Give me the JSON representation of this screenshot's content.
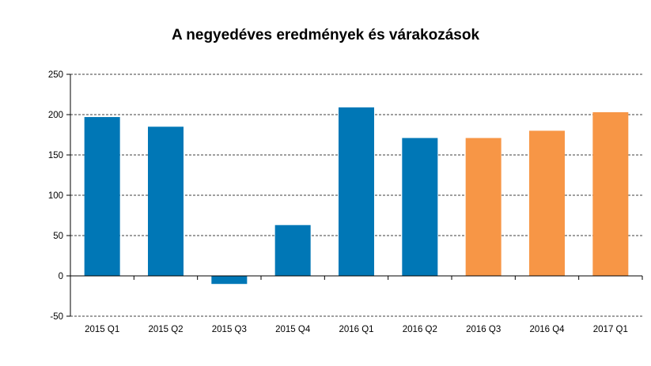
{
  "chart_data": {
    "type": "bar",
    "title": "A negyedéves eredmények és várakozások",
    "categories": [
      "2015 Q1",
      "2015 Q2",
      "2015 Q3",
      "2015 Q4",
      "2016 Q1",
      "2016 Q2",
      "2016 Q3",
      "2016 Q4",
      "2017 Q1"
    ],
    "values": [
      197,
      185,
      -10,
      63,
      209,
      171,
      171,
      180,
      203
    ],
    "bar_colors": [
      "#0077b6",
      "#0077b6",
      "#0077b6",
      "#0077b6",
      "#0077b6",
      "#0077b6",
      "#f79646",
      "#f79646",
      "#f79646"
    ],
    "ylim": [
      -50,
      250
    ],
    "yticks": [
      -50,
      0,
      50,
      100,
      150,
      200,
      250
    ],
    "ytick_labels": [
      "-50",
      "0",
      "50",
      "100",
      "150",
      "200",
      "250"
    ],
    "grid": true,
    "grid_style": "dashed",
    "xlabel": "",
    "ylabel": ""
  }
}
